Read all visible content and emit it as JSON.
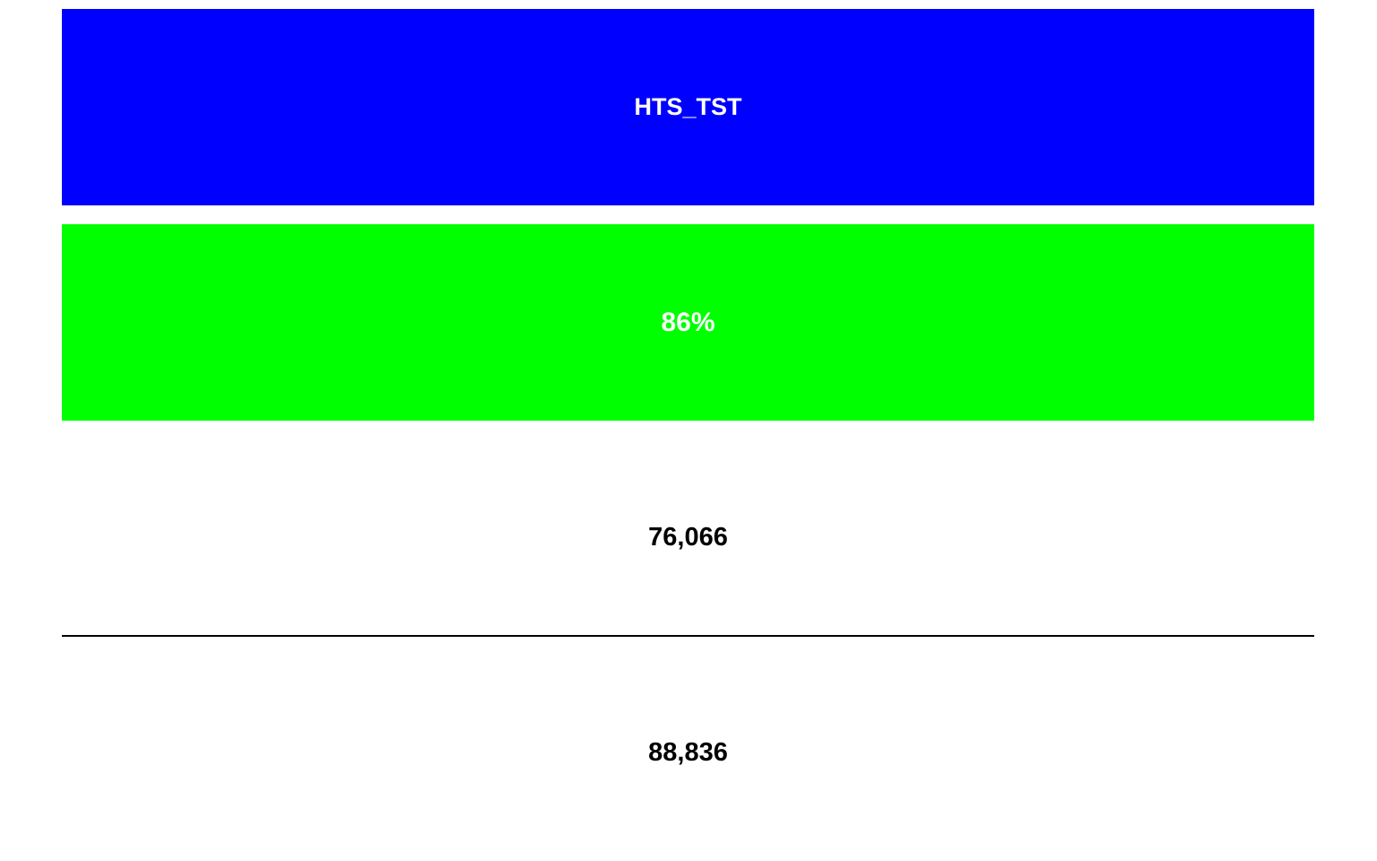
{
  "indicator": {
    "label": "HTS_TST",
    "background_color": "#0000ff",
    "text_color": "#ffffff"
  },
  "achievement": {
    "percent_label": "86%",
    "percent_value": 86,
    "background_color": "#00ff00",
    "text_color": "#ffffff"
  },
  "numerator": {
    "value_label": "76,066",
    "value": 76066
  },
  "denominator": {
    "value_label": "88,836",
    "value": 88836
  },
  "divider_color": "#000000"
}
